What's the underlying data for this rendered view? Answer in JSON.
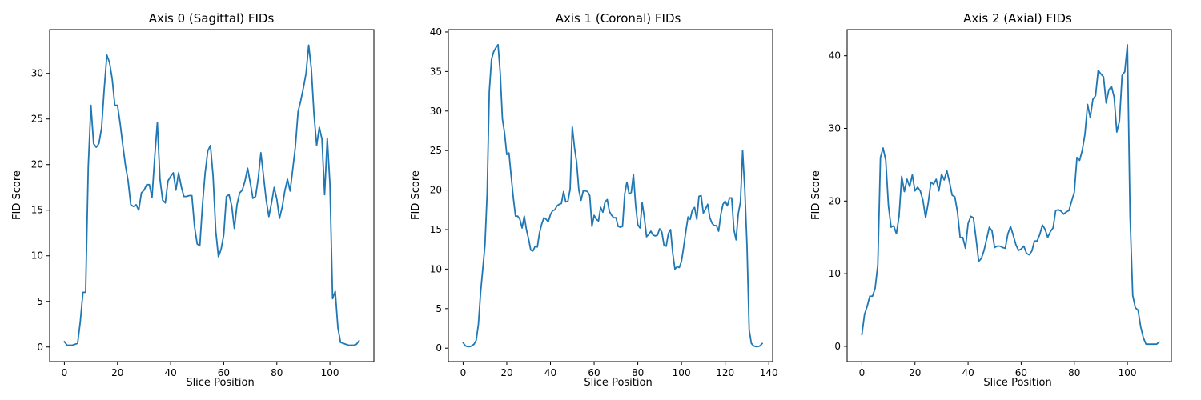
{
  "chart_data": [
    {
      "type": "line",
      "title": "Axis 0 (Sagittal) FIDs",
      "xlabel": "Slice Position",
      "ylabel": "FID Score",
      "xlim": [
        -5.55,
        116.55
      ],
      "ylim": [
        -1.6,
        34.8
      ],
      "xticks": [
        0,
        20,
        40,
        60,
        80,
        100
      ],
      "yticks": [
        0,
        5,
        10,
        15,
        20,
        25,
        30
      ],
      "grid": false,
      "color": "#1f77b4",
      "x0": 0,
      "values": [
        0.6,
        0.2,
        0.2,
        0.2,
        0.3,
        0.4,
        2.8,
        6.0,
        6.0,
        19.8,
        26.5,
        22.3,
        21.9,
        22.3,
        24.0,
        28.3,
        32.0,
        31.2,
        29.4,
        26.5,
        26.5,
        24.5,
        22.1,
        19.9,
        18.2,
        15.6,
        15.4,
        15.6,
        15.0,
        16.9,
        17.2,
        17.8,
        17.8,
        16.4,
        20.8,
        24.6,
        18.4,
        16.1,
        15.8,
        18.2,
        18.7,
        19.1,
        17.2,
        19.1,
        17.6,
        16.5,
        16.5,
        16.6,
        16.6,
        13.2,
        11.3,
        11.1,
        15.6,
        19.1,
        21.5,
        22.1,
        18.7,
        12.7,
        9.9,
        10.7,
        12.3,
        16.5,
        16.7,
        15.5,
        13.0,
        15.6,
        16.9,
        17.2,
        18.2,
        19.6,
        18.0,
        16.3,
        16.5,
        18.5,
        21.3,
        18.7,
        16.1,
        14.3,
        15.8,
        17.5,
        16.2,
        14.1,
        15.3,
        17.1,
        18.4,
        17.1,
        19.5,
        22.0,
        25.8,
        27.0,
        28.4,
        30.0,
        33.1,
        30.5,
        25.5,
        22.1,
        24.1,
        22.8,
        16.7,
        22.9,
        17.9,
        5.3,
        6.1,
        2.1,
        0.5,
        0.4,
        0.3,
        0.2,
        0.2,
        0.2,
        0.3,
        0.7
      ]
    },
    {
      "type": "line",
      "title": "Axis 1 (Coronal) FIDs",
      "xlabel": "Slice Position",
      "ylabel": "FID Score",
      "xlim": [
        -6.75,
        141.75
      ],
      "ylim": [
        -1.7,
        40.3
      ],
      "xticks": [
        0,
        20,
        40,
        60,
        80,
        100,
        120,
        140
      ],
      "yticks": [
        0,
        5,
        10,
        15,
        20,
        25,
        30,
        35,
        40
      ],
      "grid": false,
      "color": "#1f77b4",
      "x0": 0,
      "values": [
        0.7,
        0.3,
        0.2,
        0.2,
        0.3,
        0.5,
        1.0,
        3.0,
        7.0,
        10.0,
        13.0,
        19.5,
        32.5,
        36.5,
        37.5,
        38.0,
        38.4,
        34.8,
        29.0,
        27.2,
        24.5,
        24.7,
        21.8,
        19.0,
        16.7,
        16.7,
        16.3,
        15.2,
        16.7,
        15.0,
        13.8,
        12.4,
        12.3,
        12.9,
        12.8,
        14.6,
        15.7,
        16.5,
        16.3,
        16.0,
        16.9,
        17.4,
        17.5,
        18.0,
        18.2,
        18.3,
        19.8,
        18.5,
        18.6,
        20.1,
        28.0,
        25.4,
        23.5,
        20.0,
        18.7,
        19.9,
        19.9,
        19.8,
        19.3,
        15.4,
        16.8,
        16.3,
        16.1,
        17.8,
        17.2,
        18.5,
        18.8,
        17.3,
        16.8,
        16.5,
        16.5,
        15.4,
        15.3,
        15.4,
        19.5,
        21.0,
        19.5,
        19.7,
        22.0,
        18.1,
        15.6,
        15.2,
        18.4,
        16.5,
        14.1,
        14.4,
        14.8,
        14.3,
        14.2,
        14.3,
        15.1,
        14.7,
        13.0,
        12.9,
        14.5,
        15.0,
        12.0,
        10.0,
        10.3,
        10.2,
        11.0,
        12.8,
        14.8,
        16.6,
        16.3,
        17.5,
        17.8,
        16.3,
        19.2,
        19.3,
        17.1,
        17.6,
        18.2,
        16.5,
        15.8,
        15.5,
        15.5,
        14.8,
        16.9,
        18.2,
        18.6,
        18.0,
        19.0,
        19.0,
        15.0,
        13.7,
        17.0,
        18.5,
        25.0,
        20.0,
        13.0,
        2.3,
        0.6,
        0.3,
        0.2,
        0.2,
        0.3,
        0.6
      ]
    },
    {
      "type": "line",
      "title": "Axis 2 (Axial) FIDs",
      "xlabel": "Slice Position",
      "ylabel": "FID Score",
      "xlim": [
        -5.55,
        116.55
      ],
      "ylim": [
        -2.1,
        43.6
      ],
      "xticks": [
        0,
        20,
        40,
        60,
        80,
        100
      ],
      "yticks": [
        0,
        10,
        20,
        30,
        40
      ],
      "grid": false,
      "color": "#1f77b4",
      "x0": 0,
      "values": [
        1.6,
        4.4,
        5.5,
        6.9,
        6.9,
        8.0,
        11.2,
        26.0,
        27.3,
        25.6,
        19.4,
        16.4,
        16.6,
        15.5,
        17.9,
        23.4,
        21.3,
        23.0,
        22.0,
        23.6,
        21.4,
        21.9,
        21.4,
        20.1,
        17.7,
        19.8,
        22.6,
        22.3,
        23.0,
        21.4,
        23.7,
        22.9,
        24.2,
        22.6,
        20.8,
        20.6,
        18.5,
        15.0,
        15.0,
        13.5,
        16.9,
        17.9,
        17.7,
        14.8,
        11.7,
        12.1,
        13.2,
        14.8,
        16.4,
        15.9,
        13.6,
        13.8,
        13.8,
        13.6,
        13.5,
        15.5,
        16.5,
        15.3,
        14.0,
        13.2,
        13.4,
        13.8,
        12.8,
        12.6,
        13.1,
        14.5,
        14.5,
        15.4,
        16.7,
        16.1,
        15.0,
        15.8,
        16.3,
        18.7,
        18.8,
        18.6,
        18.2,
        18.5,
        18.7,
        20.0,
        21.2,
        26.0,
        25.6,
        27.0,
        29.2,
        33.3,
        31.5,
        34.0,
        34.5,
        38.0,
        37.5,
        37.1,
        33.5,
        35.3,
        35.8,
        34.3,
        29.5,
        31.0,
        37.3,
        37.8,
        41.5,
        18.0,
        7.0,
        5.3,
        5.0,
        2.7,
        1.2,
        0.3,
        0.3,
        0.3,
        0.3,
        0.3,
        0.6
      ]
    }
  ]
}
